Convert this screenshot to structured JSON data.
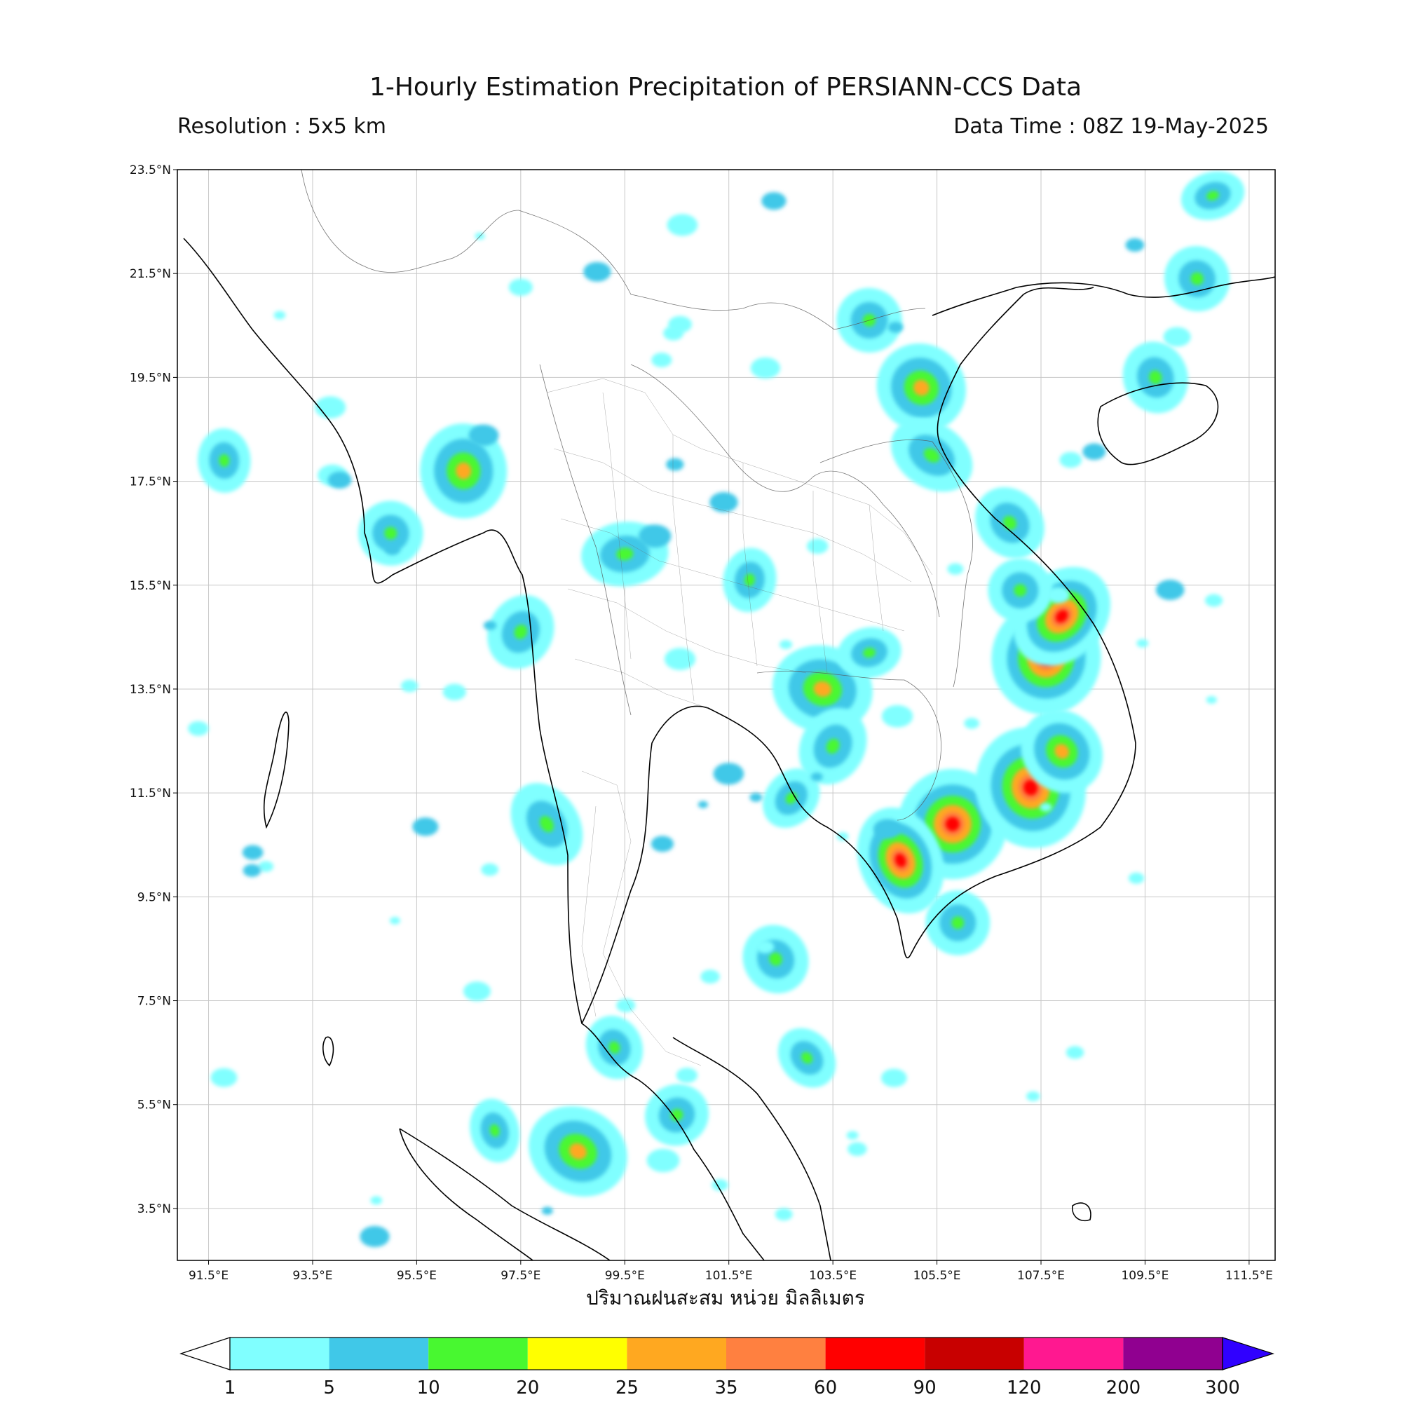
{
  "title": "1-Hourly Estimation Precipitation of PERSIANN-CCS Data",
  "resolution": "Resolution : 5x5 km",
  "data_time": "Data Time : 08Z 19-May-2025",
  "xlabel": "ปริมาณฝนสะสม หน่วย มิลลิเมตร",
  "map_extent": {
    "lon_min": 90.9,
    "lon_max": 112.0,
    "lat_min": 2.5,
    "lat_max": 23.5
  },
  "lat_ticks": [
    "23.5°N",
    "21.5°N",
    "19.5°N",
    "17.5°N",
    "15.5°N",
    "13.5°N",
    "11.5°N",
    "9.5°N",
    "7.5°N",
    "5.5°N",
    "3.5°N"
  ],
  "lon_ticks": [
    "91.5°E",
    "93.5°E",
    "95.5°E",
    "97.5°E",
    "99.5°E",
    "101.5°E",
    "103.5°E",
    "105.5°E",
    "107.5°E",
    "109.5°E",
    "111.5°E"
  ],
  "colorbar": {
    "labels": [
      "1",
      "5",
      "10",
      "20",
      "25",
      "35",
      "60",
      "90",
      "120",
      "200",
      "300"
    ],
    "colors": [
      "#80ffff",
      "#40c8e8",
      "#48f830",
      "#ffff00",
      "#ffa820",
      "#ff8040",
      "#ff0000",
      "#c80000",
      "#ff1890",
      "#900090",
      "#3000ff"
    ]
  },
  "rain_cells": [
    {
      "lon": 107.6,
      "lat": 14.1,
      "intensity": "heavy"
    },
    {
      "lon": 107.9,
      "lat": 14.9,
      "intensity": "heavy"
    },
    {
      "lon": 105.8,
      "lat": 10.9,
      "intensity": "heavy"
    },
    {
      "lon": 104.8,
      "lat": 10.2,
      "intensity": "heavy"
    },
    {
      "lon": 107.3,
      "lat": 11.6,
      "intensity": "heavy"
    },
    {
      "lon": 107.9,
      "lat": 12.3,
      "intensity": "moderate"
    },
    {
      "lon": 103.3,
      "lat": 13.5,
      "intensity": "moderate"
    },
    {
      "lon": 105.2,
      "lat": 19.3,
      "intensity": "moderate"
    },
    {
      "lon": 98.6,
      "lat": 4.6,
      "intensity": "moderate"
    },
    {
      "lon": 96.4,
      "lat": 17.7,
      "intensity": "moderate"
    },
    {
      "lon": 101.9,
      "lat": 15.6,
      "intensity": "light"
    },
    {
      "lon": 99.5,
      "lat": 16.1,
      "intensity": "light"
    },
    {
      "lon": 104.2,
      "lat": 14.2,
      "intensity": "light"
    },
    {
      "lon": 105.4,
      "lat": 18.0,
      "intensity": "light"
    },
    {
      "lon": 107.1,
      "lat": 15.4,
      "intensity": "light"
    },
    {
      "lon": 106.9,
      "lat": 16.7,
      "intensity": "light"
    },
    {
      "lon": 91.8,
      "lat": 17.9,
      "intensity": "light"
    },
    {
      "lon": 95.0,
      "lat": 16.5,
      "intensity": "light"
    },
    {
      "lon": 102.4,
      "lat": 8.3,
      "intensity": "light"
    },
    {
      "lon": 103.0,
      "lat": 6.4,
      "intensity": "light"
    },
    {
      "lon": 100.5,
      "lat": 5.3,
      "intensity": "light"
    },
    {
      "lon": 97.0,
      "lat": 5.0,
      "intensity": "light"
    },
    {
      "lon": 99.3,
      "lat": 6.6,
      "intensity": "light"
    },
    {
      "lon": 110.5,
      "lat": 21.4,
      "intensity": "light"
    },
    {
      "lon": 109.7,
      "lat": 19.5,
      "intensity": "light"
    },
    {
      "lon": 103.5,
      "lat": 12.4,
      "intensity": "light"
    },
    {
      "lon": 102.7,
      "lat": 11.4,
      "intensity": "light"
    },
    {
      "lon": 104.2,
      "lat": 20.6,
      "intensity": "light"
    },
    {
      "lon": 110.8,
      "lat": 23.0,
      "intensity": "light"
    },
    {
      "lon": 97.5,
      "lat": 14.6,
      "intensity": "light"
    },
    {
      "lon": 98.0,
      "lat": 10.9,
      "intensity": "light"
    },
    {
      "lon": 105.9,
      "lat": 9.0,
      "intensity": "light"
    }
  ]
}
